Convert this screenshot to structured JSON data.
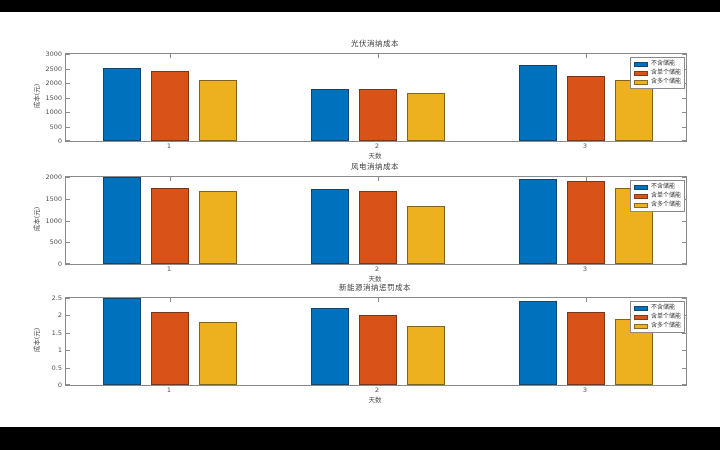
{
  "figure": {
    "background": "#000000",
    "canvas": "#ffffff",
    "axis_color": "#8a8a8a",
    "tick_text_color": "#4d4d4d"
  },
  "palette": {
    "series_blue": "#0072BD",
    "series_orange": "#D95319",
    "series_yellow": "#EDB120"
  },
  "legend_labels": [
    "不含储能",
    "含单个储能",
    "含多个储能"
  ],
  "chart_data": [
    {
      "type": "bar",
      "title": "光伏消纳成本",
      "xlabel": "天数",
      "ylabel": "成本(元)",
      "categories": [
        "1",
        "2",
        "3"
      ],
      "ylim": [
        0,
        3000
      ],
      "yticks": [
        "0",
        "500",
        "1000",
        "1500",
        "2000",
        "2500",
        "3000"
      ],
      "grid": false,
      "legend_position": "northeast",
      "series": [
        {
          "name": "不含储能",
          "color": "#0072BD",
          "values": [
            2500,
            1800,
            2620
          ]
        },
        {
          "name": "含单个储能",
          "color": "#D95319",
          "values": [
            2430,
            1780,
            2250
          ]
        },
        {
          "name": "含多个储能",
          "color": "#EDB120",
          "values": [
            2120,
            1650,
            2120
          ]
        }
      ]
    },
    {
      "type": "bar",
      "title": "风电消纳成本",
      "xlabel": "天数",
      "ylabel": "成本(元)",
      "categories": [
        "1",
        "2",
        "3"
      ],
      "ylim": [
        0,
        2000
      ],
      "yticks": [
        "0",
        "500",
        "1000",
        "1500",
        "2000"
      ],
      "grid": false,
      "legend_position": "northeast",
      "series": [
        {
          "name": "不含储能",
          "color": "#0072BD",
          "values": [
            2000,
            1720,
            1960
          ]
        },
        {
          "name": "含单个储能",
          "color": "#D95319",
          "values": [
            1750,
            1680,
            1910
          ]
        },
        {
          "name": "含多个储能",
          "color": "#EDB120",
          "values": [
            1680,
            1340,
            1750
          ]
        }
      ]
    },
    {
      "type": "bar",
      "title": "新能源消纳惩罚成本",
      "xlabel": "天数",
      "ylabel": "成本(元)",
      "categories": [
        "1",
        "2",
        "3"
      ],
      "ylim": [
        0,
        2.5
      ],
      "yticks": [
        "0",
        "0.5",
        "1",
        "1.5",
        "2",
        "2.5"
      ],
      "grid": false,
      "legend_position": "northeast",
      "series": [
        {
          "name": "不含储能",
          "color": "#0072BD",
          "values": [
            2.5,
            2.2,
            2.4
          ]
        },
        {
          "name": "含单个储能",
          "color": "#D95319",
          "values": [
            2.1,
            2.0,
            2.1
          ]
        },
        {
          "name": "含多个储能",
          "color": "#EDB120",
          "values": [
            1.8,
            1.7,
            1.9
          ]
        }
      ]
    }
  ]
}
